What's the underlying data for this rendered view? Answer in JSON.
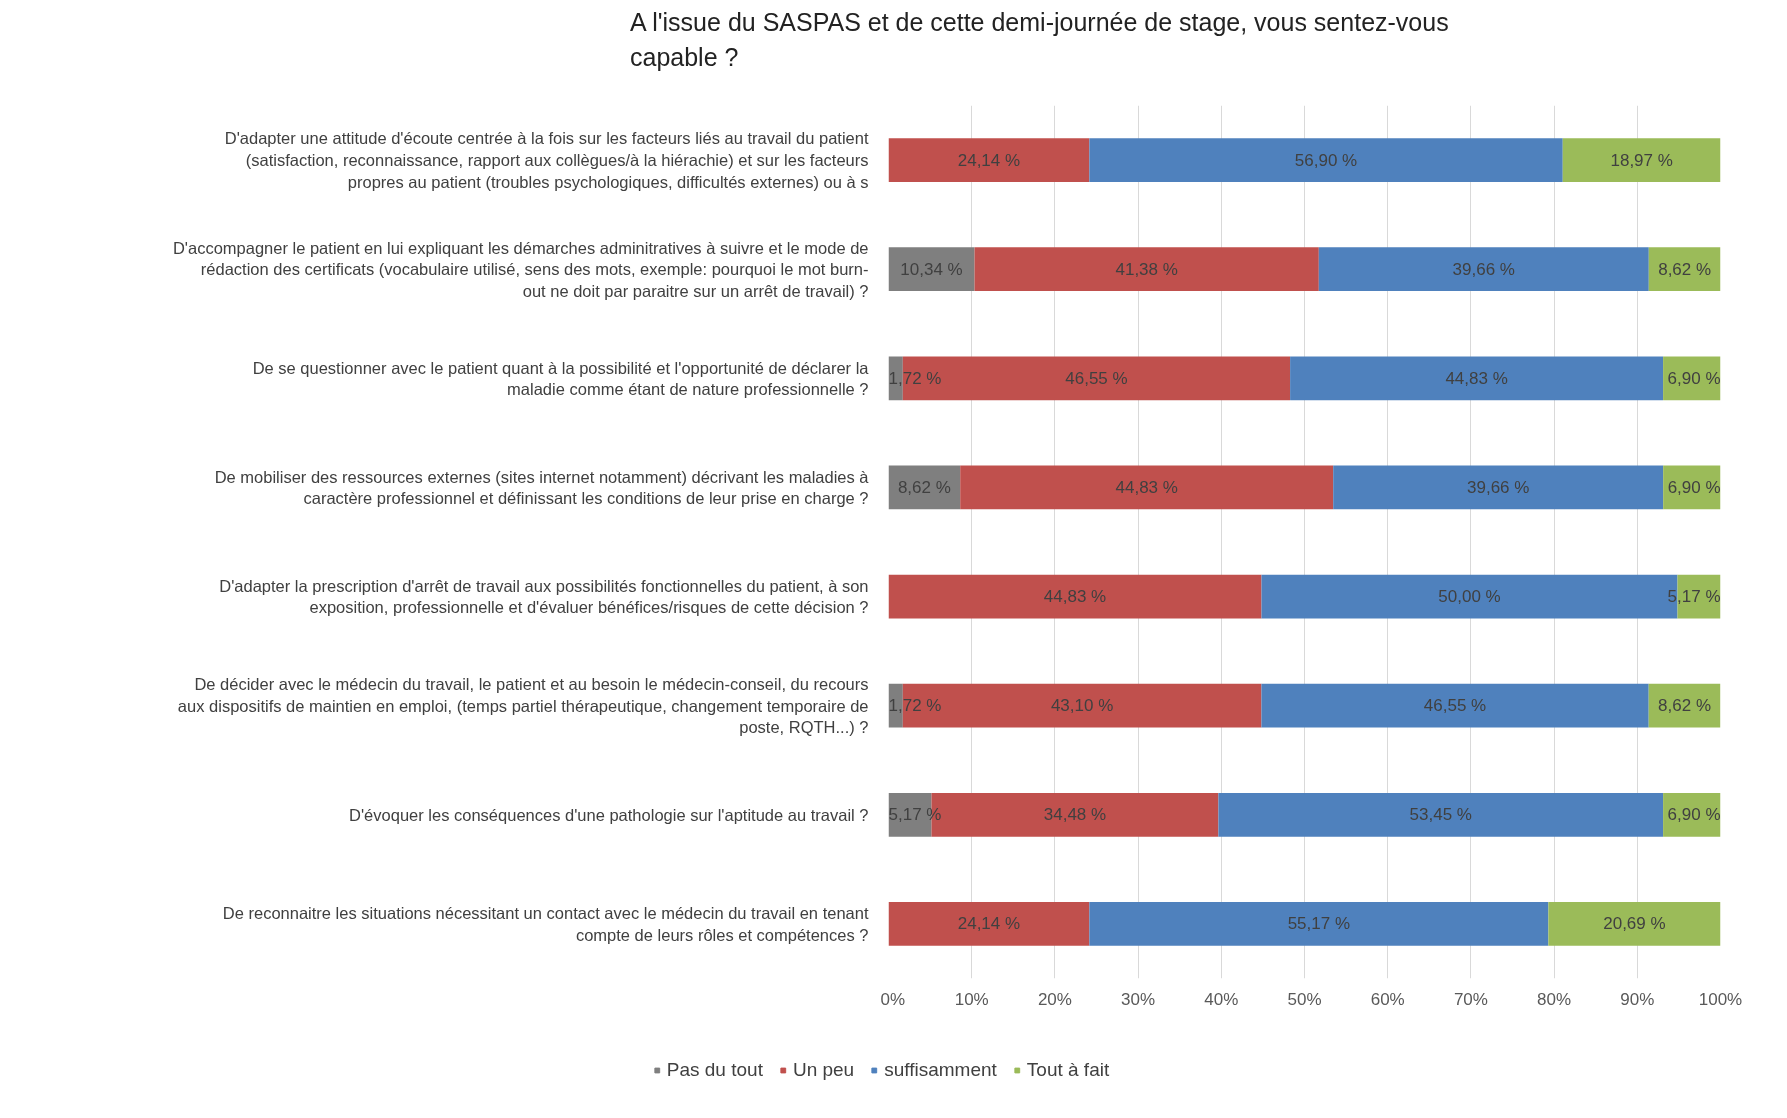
{
  "chart_data": {
    "type": "bar",
    "orientation": "horizontal",
    "stacked": true,
    "title": "A l'issue du SASPAS et de cette demi-journée de stage, vous sentez-vous capable ?",
    "categories": [
      "D'adapter une attitude d'écoute centrée à la fois sur les facteurs liés au travail du patient (satisfaction, reconnaissance, rapport aux collègues/à la hiérachie) et sur les facteurs propres au patient (troubles psychologiques, difficultés externes) ou à s",
      "D'accompagner le patient en lui expliquant les démarches adminitratives à suivre et le mode de rédaction des certificats (vocabulaire utilisé, sens des mots, exemple: pourquoi le mot burn-out ne doit par paraitre sur un arrêt de travail) ?",
      "De se questionner avec le patient quant à la possibilité et l'opportunité de déclarer la maladie comme étant de nature professionnelle ?",
      "De mobiliser des ressources externes (sites internet notamment) décrivant les maladies à caractère professionnel et définissant les conditions de leur prise en charge ?",
      "D'adapter la prescription d'arrêt de travail aux possibilités fonctionnelles du patient, à son exposition, professionnelle et d'évaluer bénéfices/risques de cette décision ?",
      "De décider avec le médecin du travail, le patient et au besoin le médecin-conseil, du recours aux dispositifs de maintien en emploi, (temps partiel thérapeutique, changement temporaire de poste, RQTH...) ?",
      "D'évoquer les conséquences d'une pathologie sur l'aptitude au travail ?",
      "De reconnaitre les situations nécessitant un contact avec le médecin du travail en tenant compte de leurs rôles et compétences ?"
    ],
    "series": [
      {
        "name": "Pas du tout",
        "color": "#7f7f7f",
        "values": [
          0,
          10.34,
          1.72,
          8.62,
          0,
          1.72,
          5.17,
          0
        ],
        "value_labels": [
          null,
          "10,34 %",
          "1,72 %",
          "8,62 %",
          null,
          "1,72 %",
          "5,17 %",
          null
        ]
      },
      {
        "name": "Un peu",
        "color": "#c0504d",
        "values": [
          24.14,
          41.38,
          46.55,
          44.83,
          44.83,
          43.1,
          34.48,
          24.14
        ],
        "value_labels": [
          "24,14 %",
          "41,38 %",
          "46,55 %",
          "44,83 %",
          "44,83 %",
          "43,10 %",
          "34,48 %",
          "24,14 %"
        ]
      },
      {
        "name": "suffisamment",
        "color": "#4f81bd",
        "values": [
          56.9,
          39.66,
          44.83,
          39.66,
          50.0,
          46.55,
          53.45,
          55.17
        ],
        "value_labels": [
          "56,90 %",
          "39,66 %",
          "44,83 %",
          "39,66 %",
          "50,00 %",
          "46,55 %",
          "53,45 %",
          "55,17 %"
        ]
      },
      {
        "name": "Tout à fait",
        "color": "#9bbb59",
        "values": [
          18.97,
          8.62,
          6.9,
          6.9,
          5.17,
          8.62,
          6.9,
          20.69
        ],
        "value_labels": [
          "18,97 %",
          "8,62 %",
          "6,90 %",
          "6,90 %",
          "5,17 %",
          "8,62 %",
          "6,90 %",
          "20,69 %"
        ]
      }
    ],
    "xlim": [
      0,
      100
    ],
    "xticks": [
      {
        "value": 0,
        "label": "0%"
      },
      {
        "value": 10,
        "label": "10%"
      },
      {
        "value": 20,
        "label": "20%"
      },
      {
        "value": 30,
        "label": "30%"
      },
      {
        "value": 40,
        "label": "40%"
      },
      {
        "value": 50,
        "label": "50%"
      },
      {
        "value": 60,
        "label": "60%"
      },
      {
        "value": 70,
        "label": "70%"
      },
      {
        "value": 80,
        "label": "80%"
      },
      {
        "value": 90,
        "label": "90%"
      },
      {
        "value": 100,
        "label": "100%"
      }
    ],
    "grid": "x",
    "legend": "bottom"
  }
}
